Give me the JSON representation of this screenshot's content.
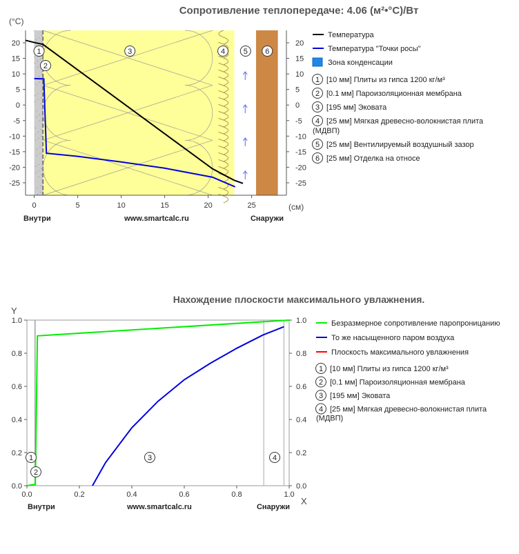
{
  "chart_data": [
    {
      "type": "line",
      "title": "Сопротивление теплопередаче: 4.06 (м²•°С)/Вт",
      "ylabel": "(°С)",
      "xlabel": "(см)",
      "ylim": [
        -29,
        24
      ],
      "xlim": [
        -1,
        29
      ],
      "yticks": [
        20,
        15,
        10,
        5,
        0,
        -5,
        -10,
        -15,
        -20,
        -25
      ],
      "xticks": [
        0,
        5,
        10,
        15,
        20,
        25
      ],
      "bottom_left": "Внутри",
      "bottom_center": "www.smartcalc.ru",
      "bottom_right": "Снаружи",
      "layers": [
        {
          "n": "1",
          "x0": 0,
          "x1": 1.0,
          "fill": "#cccccc",
          "label": "[10 мм] Плиты из гипса 1200 кг/м³"
        },
        {
          "n": "2",
          "x0": 1.0,
          "x1": 1.01,
          "fill": "#e8e8e8",
          "label": "[0.1 мм] Пароизоляционная мембрана"
        },
        {
          "n": "3",
          "x0": 1.01,
          "x1": 20.51,
          "fill": "#ffff99",
          "label": "[195 мм] Эковата"
        },
        {
          "n": "4",
          "x0": 20.51,
          "x1": 23.01,
          "fill": "#ffff99",
          "label": "[25 мм] Мягкая древесно-волокнистая плита (МДВП)"
        },
        {
          "n": "5",
          "x0": 23.01,
          "x1": 25.51,
          "fill": "#ffffff",
          "label": "[25 мм] Вентилируемый воздушный зазор"
        },
        {
          "n": "6",
          "x0": 25.51,
          "x1": 28.01,
          "fill": "#cc8844",
          "label": "[25 мм] Отделка на относе"
        }
      ],
      "legend_condensation": "Зона конденсации",
      "series": [
        {
          "name": "Температура",
          "color": "#000000",
          "x": [
            -1,
            0,
            1.0,
            20.5,
            23.0,
            24.0
          ],
          "y": [
            20.8,
            20.1,
            19.5,
            -20.5,
            -24.2,
            -25.2
          ]
        },
        {
          "name": "Температура \"Точки росы\"",
          "color": "#0000dd",
          "x": [
            0,
            1.1,
            1.4,
            5,
            10,
            15,
            20.5,
            23.1
          ],
          "y": [
            8.5,
            8.4,
            -15.5,
            -16.5,
            -18.3,
            -20.3,
            -23.2,
            -26.3
          ]
        }
      ]
    },
    {
      "type": "line",
      "title": "Нахождение плоскости максимального увлажнения.",
      "ylabel": "Y",
      "xlabel": "X",
      "xlim": [
        0,
        1
      ],
      "ylim": [
        0,
        1
      ],
      "xticks": [
        0.0,
        0.2,
        0.4,
        0.6,
        0.8,
        1.0
      ],
      "yticks": [
        0.0,
        0.2,
        0.4,
        0.6,
        0.8,
        1.0
      ],
      "bottom_left": "Внутри",
      "bottom_center": "www.smartcalc.ru",
      "bottom_right": "Снаружи",
      "layer_bounds": [
        0,
        0.03,
        0.032,
        0.903,
        0.98,
        1.0
      ],
      "layer_labels": [
        "1",
        "2",
        "3",
        "4"
      ],
      "layers_legend": [
        {
          "n": "1",
          "label": "[10 мм] Плиты из гипса 1200 кг/м³"
        },
        {
          "n": "2",
          "label": "[0.1 мм] Пароизоляционная мембрана"
        },
        {
          "n": "3",
          "label": "[195 мм] Эковата"
        },
        {
          "n": "4",
          "label": "[25 мм] Мягкая древесно-волокнистая плита (МДВП)"
        }
      ],
      "series": [
        {
          "name": "Безразмерное сопротивление паропроницанию",
          "color": "#00ee00",
          "x": [
            0.0,
            0.03,
            0.032,
            0.04,
            1.0
          ],
          "y": [
            0.0,
            0.008,
            0.008,
            0.905,
            1.0
          ]
        },
        {
          "name": "То же насыщенного паром воздуха",
          "color": "#0000dd",
          "x": [
            0.25,
            0.3,
            0.4,
            0.5,
            0.6,
            0.7,
            0.8,
            0.9,
            0.98
          ],
          "y": [
            0.0,
            0.14,
            0.35,
            0.51,
            0.64,
            0.74,
            0.83,
            0.91,
            0.96
          ]
        },
        {
          "name": "Плоскость максимального увлажнения",
          "color": "#ff0000",
          "x": [],
          "y": []
        }
      ]
    }
  ]
}
